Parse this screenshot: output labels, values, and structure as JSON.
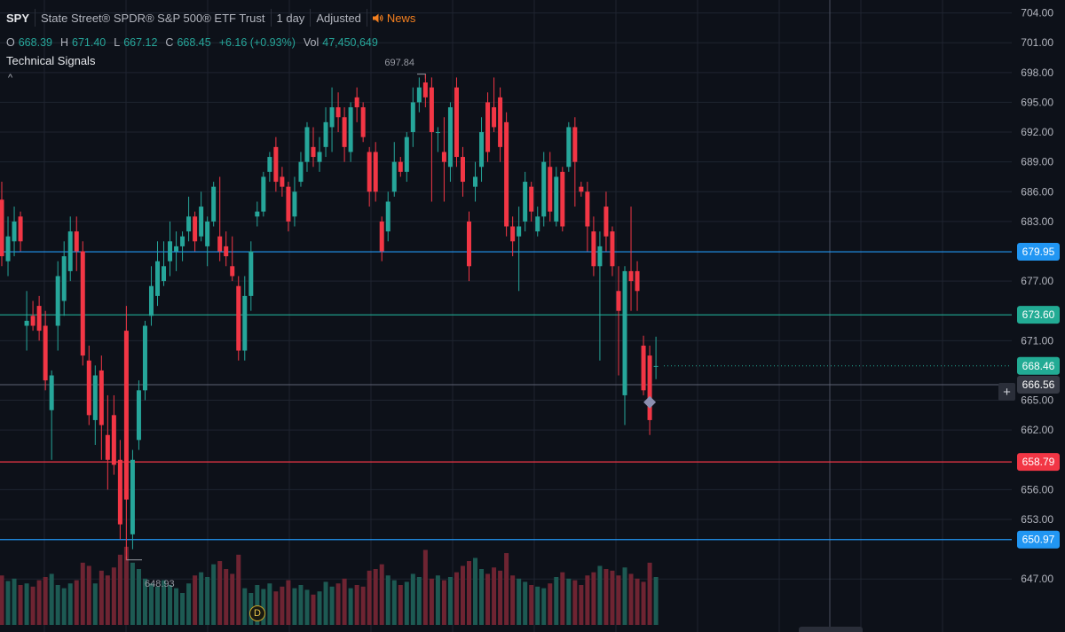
{
  "header": {
    "symbol": "SPY",
    "name": "State Street® SPDR® S&P 500® ETF Trust",
    "interval": "1 day",
    "adjustment": "Adjusted",
    "news_label": "News"
  },
  "ohlc": {
    "o_label": "O",
    "o": "668.39",
    "h_label": "H",
    "h": "671.40",
    "l_label": "L",
    "l": "667.12",
    "c_label": "C",
    "c": "668.45",
    "change": "+6.16 (+0.93%)",
    "vol_label": "Vol",
    "vol": "47,450,649"
  },
  "indicator": {
    "name": "Technical Signals",
    "collapse_icon": "chevron-up-icon"
  },
  "colors": {
    "up": "#26a69a",
    "down": "#f23645",
    "background": "#0d1119",
    "grid": "#1f2430",
    "axis_text": "#b2b5be"
  },
  "badges": {
    "dividend": "D"
  },
  "chart_data": {
    "type": "candlestick",
    "ylim": [
      645.5,
      704.5
    ],
    "yticks": [
      "704.00",
      "701.00",
      "698.00",
      "695.00",
      "692.00",
      "689.00",
      "686.00",
      "683.00",
      "677.00",
      "671.00",
      "665.00",
      "662.00",
      "656.00",
      "653.00",
      "647.00"
    ],
    "candles": [
      {
        "o": 685.2,
        "h": 687.0,
        "l": 678.5,
        "c": 679.5
      },
      {
        "o": 679.0,
        "h": 683.5,
        "l": 677.5,
        "c": 681.5
      },
      {
        "o": 681.0,
        "h": 684.5,
        "l": 679.5,
        "c": 683.0
      },
      {
        "o": 683.5,
        "h": 684.0,
        "l": 680.0,
        "c": 681.0
      },
      {
        "o": 672.5,
        "h": 676.0,
        "l": 670.0,
        "c": 673.0
      },
      {
        "o": 673.5,
        "h": 675.0,
        "l": 672.0,
        "c": 672.5
      },
      {
        "o": 674.5,
        "h": 675.5,
        "l": 671.0,
        "c": 672.0
      },
      {
        "o": 672.5,
        "h": 674.0,
        "l": 666.0,
        "c": 667.0
      },
      {
        "o": 664.0,
        "h": 668.0,
        "l": 659.0,
        "c": 667.5
      },
      {
        "o": 672.5,
        "h": 679.0,
        "l": 670.0,
        "c": 677.5
      },
      {
        "o": 675.0,
        "h": 681.0,
        "l": 673.5,
        "c": 679.5
      },
      {
        "o": 678.0,
        "h": 683.5,
        "l": 677.0,
        "c": 682.0
      },
      {
        "o": 682.0,
        "h": 683.5,
        "l": 678.0,
        "c": 680.0
      },
      {
        "o": 680.0,
        "h": 681.0,
        "l": 668.5,
        "c": 669.5
      },
      {
        "o": 669.0,
        "h": 670.5,
        "l": 662.5,
        "c": 663.5
      },
      {
        "o": 663.0,
        "h": 668.5,
        "l": 660.5,
        "c": 667.5
      },
      {
        "o": 668.0,
        "h": 669.5,
        "l": 659.0,
        "c": 662.5
      },
      {
        "o": 661.5,
        "h": 665.5,
        "l": 656.0,
        "c": 659.0
      },
      {
        "o": 663.5,
        "h": 665.5,
        "l": 657.5,
        "c": 658.5
      },
      {
        "o": 659.0,
        "h": 661.0,
        "l": 651.0,
        "c": 652.5
      },
      {
        "o": 672.0,
        "h": 674.5,
        "l": 648.9,
        "c": 655.0
      },
      {
        "o": 651.5,
        "h": 660.0,
        "l": 650.0,
        "c": 659.0
      },
      {
        "o": 661.0,
        "h": 667.0,
        "l": 660.0,
        "c": 666.0
      },
      {
        "o": 666.0,
        "h": 673.0,
        "l": 665.0,
        "c": 672.5
      },
      {
        "o": 673.5,
        "h": 678.5,
        "l": 672.5,
        "c": 676.5
      },
      {
        "o": 675.5,
        "h": 681.0,
        "l": 674.5,
        "c": 679.0
      },
      {
        "o": 677.0,
        "h": 681.0,
        "l": 676.5,
        "c": 678.5
      },
      {
        "o": 679.0,
        "h": 683.0,
        "l": 677.5,
        "c": 681.0
      },
      {
        "o": 680.0,
        "h": 682.0,
        "l": 678.0,
        "c": 680.5
      },
      {
        "o": 680.5,
        "h": 682.0,
        "l": 679.0,
        "c": 681.5
      },
      {
        "o": 682.0,
        "h": 685.5,
        "l": 681.0,
        "c": 683.5
      },
      {
        "o": 683.5,
        "h": 684.0,
        "l": 680.0,
        "c": 681.0
      },
      {
        "o": 681.5,
        "h": 686.0,
        "l": 681.0,
        "c": 684.5
      },
      {
        "o": 680.5,
        "h": 683.5,
        "l": 678.5,
        "c": 683.0
      },
      {
        "o": 683.0,
        "h": 687.0,
        "l": 682.5,
        "c": 686.5
      },
      {
        "o": 681.5,
        "h": 687.5,
        "l": 679.0,
        "c": 680.0
      },
      {
        "o": 680.5,
        "h": 682.0,
        "l": 678.5,
        "c": 679.5
      },
      {
        "o": 678.5,
        "h": 681.5,
        "l": 677.0,
        "c": 677.5
      },
      {
        "o": 676.5,
        "h": 677.5,
        "l": 669.0,
        "c": 670.0
      },
      {
        "o": 670.0,
        "h": 677.5,
        "l": 669.0,
        "c": 675.5
      },
      {
        "o": 675.5,
        "h": 681.0,
        "l": 674.0,
        "c": 680.0
      },
      {
        "o": 683.5,
        "h": 685.0,
        "l": 682.5,
        "c": 684.0
      },
      {
        "o": 684.0,
        "h": 688.0,
        "l": 683.5,
        "c": 687.5
      },
      {
        "o": 688.0,
        "h": 690.0,
        "l": 687.0,
        "c": 689.5
      },
      {
        "o": 690.5,
        "h": 691.5,
        "l": 686.0,
        "c": 687.0
      },
      {
        "o": 687.5,
        "h": 688.5,
        "l": 685.5,
        "c": 686.5
      },
      {
        "o": 686.5,
        "h": 687.0,
        "l": 682.0,
        "c": 683.0
      },
      {
        "o": 683.5,
        "h": 687.5,
        "l": 682.5,
        "c": 686.0
      },
      {
        "o": 687.0,
        "h": 690.0,
        "l": 686.5,
        "c": 689.0
      },
      {
        "o": 689.0,
        "h": 693.0,
        "l": 688.0,
        "c": 692.5
      },
      {
        "o": 690.5,
        "h": 692.5,
        "l": 688.5,
        "c": 689.5
      },
      {
        "o": 689.0,
        "h": 691.5,
        "l": 688.0,
        "c": 690.0
      },
      {
        "o": 690.5,
        "h": 694.5,
        "l": 689.5,
        "c": 693.0
      },
      {
        "o": 692.5,
        "h": 696.5,
        "l": 690.0,
        "c": 694.5
      },
      {
        "o": 694.5,
        "h": 696.0,
        "l": 692.0,
        "c": 693.5
      },
      {
        "o": 693.5,
        "h": 694.5,
        "l": 689.0,
        "c": 690.5
      },
      {
        "o": 690.0,
        "h": 695.0,
        "l": 689.0,
        "c": 694.5
      },
      {
        "o": 695.5,
        "h": 696.5,
        "l": 693.0,
        "c": 694.5
      },
      {
        "o": 694.5,
        "h": 695.0,
        "l": 691.0,
        "c": 691.5
      },
      {
        "o": 690.0,
        "h": 690.5,
        "l": 684.5,
        "c": 686.0
      },
      {
        "o": 690.0,
        "h": 691.0,
        "l": 685.0,
        "c": 686.0
      },
      {
        "o": 683.0,
        "h": 683.5,
        "l": 679.0,
        "c": 680.0
      },
      {
        "o": 682.0,
        "h": 686.0,
        "l": 681.0,
        "c": 685.0
      },
      {
        "o": 686.0,
        "h": 691.0,
        "l": 685.5,
        "c": 689.0
      },
      {
        "o": 689.0,
        "h": 689.5,
        "l": 687.5,
        "c": 688.0
      },
      {
        "o": 688.0,
        "h": 692.0,
        "l": 687.0,
        "c": 691.5
      },
      {
        "o": 692.0,
        "h": 696.5,
        "l": 690.5,
        "c": 695.0
      },
      {
        "o": 695.0,
        "h": 697.5,
        "l": 694.0,
        "c": 696.5
      },
      {
        "o": 697.0,
        "h": 697.8,
        "l": 694.5,
        "c": 695.5
      },
      {
        "o": 696.5,
        "h": 697.5,
        "l": 685.0,
        "c": 692.0
      },
      {
        "o": 692.0,
        "h": 692.5,
        "l": 690.0,
        "c": 692.0
      },
      {
        "o": 690.0,
        "h": 693.5,
        "l": 685.0,
        "c": 689.0
      },
      {
        "o": 688.5,
        "h": 695.0,
        "l": 687.0,
        "c": 694.5
      },
      {
        "o": 696.5,
        "h": 697.5,
        "l": 688.5,
        "c": 689.5
      },
      {
        "o": 689.5,
        "h": 690.5,
        "l": 685.5,
        "c": 687.0
      },
      {
        "o": 683.0,
        "h": 684.0,
        "l": 677.0,
        "c": 678.5
      },
      {
        "o": 686.5,
        "h": 689.0,
        "l": 685.0,
        "c": 687.5
      },
      {
        "o": 688.5,
        "h": 693.5,
        "l": 687.0,
        "c": 692.0
      },
      {
        "o": 695.0,
        "h": 696.0,
        "l": 689.0,
        "c": 690.0
      },
      {
        "o": 694.5,
        "h": 697.5,
        "l": 692.0,
        "c": 692.5
      },
      {
        "o": 695.5,
        "h": 696.5,
        "l": 689.0,
        "c": 690.5
      },
      {
        "o": 693.0,
        "h": 694.0,
        "l": 681.5,
        "c": 682.5
      },
      {
        "o": 682.5,
        "h": 683.5,
        "l": 679.5,
        "c": 681.0
      },
      {
        "o": 681.5,
        "h": 684.5,
        "l": 676.0,
        "c": 682.5
      },
      {
        "o": 683.0,
        "h": 688.0,
        "l": 682.0,
        "c": 687.0
      },
      {
        "o": 686.5,
        "h": 687.0,
        "l": 683.0,
        "c": 684.0
      },
      {
        "o": 682.0,
        "h": 684.5,
        "l": 681.5,
        "c": 683.5
      },
      {
        "o": 683.5,
        "h": 690.0,
        "l": 682.5,
        "c": 689.0
      },
      {
        "o": 688.5,
        "h": 690.0,
        "l": 683.0,
        "c": 684.0
      },
      {
        "o": 683.0,
        "h": 688.5,
        "l": 682.5,
        "c": 687.5
      },
      {
        "o": 688.0,
        "h": 688.5,
        "l": 682.0,
        "c": 682.5
      },
      {
        "o": 688.5,
        "h": 693.0,
        "l": 688.0,
        "c": 692.5
      },
      {
        "o": 692.5,
        "h": 693.5,
        "l": 684.5,
        "c": 689.0
      },
      {
        "o": 686.5,
        "h": 687.0,
        "l": 685.5,
        "c": 686.0
      },
      {
        "o": 686.0,
        "h": 687.0,
        "l": 680.0,
        "c": 682.5
      },
      {
        "o": 682.0,
        "h": 683.5,
        "l": 677.5,
        "c": 678.5
      },
      {
        "o": 678.5,
        "h": 682.0,
        "l": 669.0,
        "c": 680.5
      },
      {
        "o": 684.5,
        "h": 686.0,
        "l": 680.0,
        "c": 681.5
      },
      {
        "o": 682.0,
        "h": 682.5,
        "l": 677.5,
        "c": 678.5
      },
      {
        "o": 676.0,
        "h": 678.5,
        "l": 667.5,
        "c": 674.0
      },
      {
        "o": 665.5,
        "h": 678.5,
        "l": 662.5,
        "c": 678.0
      },
      {
        "o": 678.0,
        "h": 684.5,
        "l": 674.0,
        "c": 677.0
      },
      {
        "o": 678.0,
        "h": 679.0,
        "l": 674.0,
        "c": 676.0
      },
      {
        "o": 670.5,
        "h": 671.5,
        "l": 665.5,
        "c": 666.0
      },
      {
        "o": 669.5,
        "h": 670.5,
        "l": 661.5,
        "c": 663.0
      },
      {
        "o": 668.39,
        "h": 671.4,
        "l": 667.12,
        "c": 668.45
      }
    ],
    "volume_ratio": [
      0.62,
      0.55,
      0.58,
      0.5,
      0.52,
      0.48,
      0.56,
      0.6,
      0.64,
      0.5,
      0.46,
      0.52,
      0.56,
      0.78,
      0.74,
      0.52,
      0.68,
      0.62,
      0.72,
      0.88,
      0.98,
      0.78,
      0.7,
      0.58,
      0.52,
      0.48,
      0.56,
      0.5,
      0.46,
      0.4,
      0.52,
      0.62,
      0.66,
      0.6,
      0.76,
      0.8,
      0.7,
      0.64,
      0.88,
      0.46,
      0.4,
      0.5,
      0.45,
      0.52,
      0.42,
      0.48,
      0.56,
      0.46,
      0.5,
      0.44,
      0.38,
      0.42,
      0.54,
      0.48,
      0.52,
      0.58,
      0.46,
      0.5,
      0.48,
      0.68,
      0.7,
      0.76,
      0.62,
      0.56,
      0.5,
      0.54,
      0.64,
      0.6,
      0.94,
      0.58,
      0.62,
      0.56,
      0.6,
      0.66,
      0.74,
      0.8,
      0.84,
      0.7,
      0.64,
      0.72,
      0.68,
      0.9,
      0.62,
      0.58,
      0.54,
      0.5,
      0.48,
      0.46,
      0.52,
      0.6,
      0.66,
      0.58,
      0.56,
      0.5,
      0.62,
      0.66,
      0.74,
      0.7,
      0.68,
      0.62,
      0.72,
      0.64,
      0.58,
      0.54,
      0.78,
      0.6
    ],
    "price_lines": [
      {
        "value": 679.95,
        "label": "679.95",
        "color": "#2196f3"
      },
      {
        "value": 673.6,
        "label": "673.60",
        "color": "#22ab94"
      },
      {
        "value": 658.79,
        "label": "658.79",
        "color": "#f23645"
      },
      {
        "value": 650.97,
        "label": "650.97",
        "color": "#2196f3"
      }
    ],
    "last_price": {
      "value": 668.46,
      "label": "668.46",
      "color": "#22ab94"
    },
    "crosshair": {
      "value": 666.56,
      "label": "666.56"
    },
    "annotations": {
      "high_label": "697.84",
      "low_label": "648.93"
    }
  }
}
